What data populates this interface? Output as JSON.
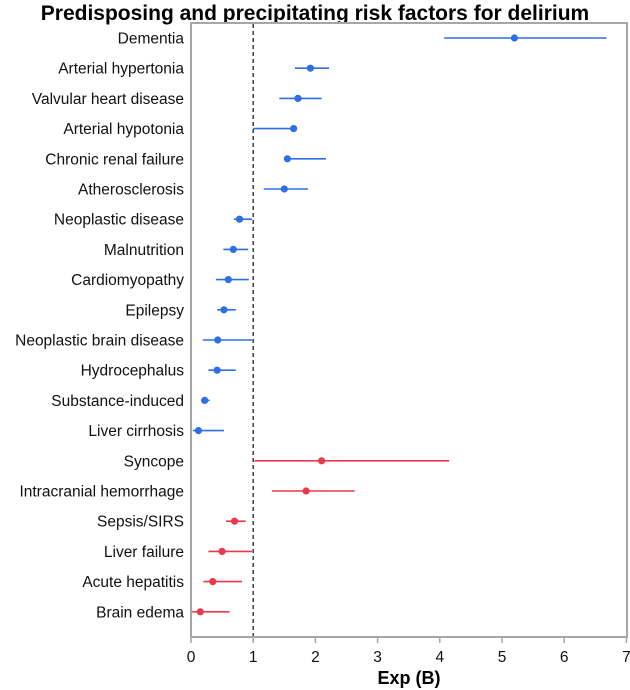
{
  "chart_data": {
    "type": "forest",
    "title": "Predisposing and precipitating risk factors for delirium",
    "xlabel": "Exp (B)",
    "xlim": [
      0,
      7
    ],
    "xticks": [
      0,
      1,
      2,
      3,
      4,
      5,
      6,
      7
    ],
    "reference_line": 1,
    "colors": {
      "predisposing": "#2f6fe4",
      "precipitating": "#e8394d"
    },
    "series": [
      {
        "name": "Predisposing",
        "color": "#2f6fe4",
        "items": [
          {
            "label": "Dementia",
            "value": 5.2,
            "lower": 4.07,
            "upper": 6.68
          },
          {
            "label": "Arterial hypertonia",
            "value": 1.92,
            "lower": 1.67,
            "upper": 2.22
          },
          {
            "label": "Valvular heart disease",
            "value": 1.72,
            "lower": 1.42,
            "upper": 2.1
          },
          {
            "label": "Arterial hypotonia",
            "value": 1.65,
            "lower": 1.0,
            "upper": 1.65
          },
          {
            "label": "Chronic renal failure",
            "value": 1.55,
            "lower": 1.55,
            "upper": 2.17
          },
          {
            "label": "Atherosclerosis",
            "value": 1.5,
            "lower": 1.17,
            "upper": 1.88
          },
          {
            "label": "Neoplastic disease",
            "value": 0.78,
            "lower": 0.69,
            "upper": 0.98
          },
          {
            "label": "Malnutrition",
            "value": 0.68,
            "lower": 0.52,
            "upper": 0.92
          },
          {
            "label": "Cardiomyopathy",
            "value": 0.6,
            "lower": 0.4,
            "upper": 0.93
          },
          {
            "label": "Epilepsy",
            "value": 0.53,
            "lower": 0.42,
            "upper": 0.72
          },
          {
            "label": "Neoplastic brain disease",
            "value": 0.43,
            "lower": 0.19,
            "upper": 0.98
          },
          {
            "label": "Hydrocephalus",
            "value": 0.42,
            "lower": 0.28,
            "upper": 0.72
          },
          {
            "label": "Substance-induced",
            "value": 0.22,
            "lower": 0.16,
            "upper": 0.3
          },
          {
            "label": "Liver cirrhosis",
            "value": 0.12,
            "lower": 0.03,
            "upper": 0.53
          }
        ]
      },
      {
        "name": "Precipitating",
        "color": "#e8394d",
        "items": [
          {
            "label": "Syncope",
            "value": 2.1,
            "lower": 1.02,
            "upper": 4.15
          },
          {
            "label": "Intracranial hemorrhage",
            "value": 1.85,
            "lower": 1.3,
            "upper": 2.63
          },
          {
            "label": "Sepsis/SIRS",
            "value": 0.7,
            "lower": 0.56,
            "upper": 0.88
          },
          {
            "label": "Liver failure",
            "value": 0.5,
            "lower": 0.28,
            "upper": 0.98
          },
          {
            "label": "Acute hepatitis",
            "value": 0.35,
            "lower": 0.2,
            "upper": 0.82
          },
          {
            "label": "Brain edema",
            "value": 0.15,
            "lower": 0.02,
            "upper": 0.62
          }
        ]
      }
    ]
  }
}
